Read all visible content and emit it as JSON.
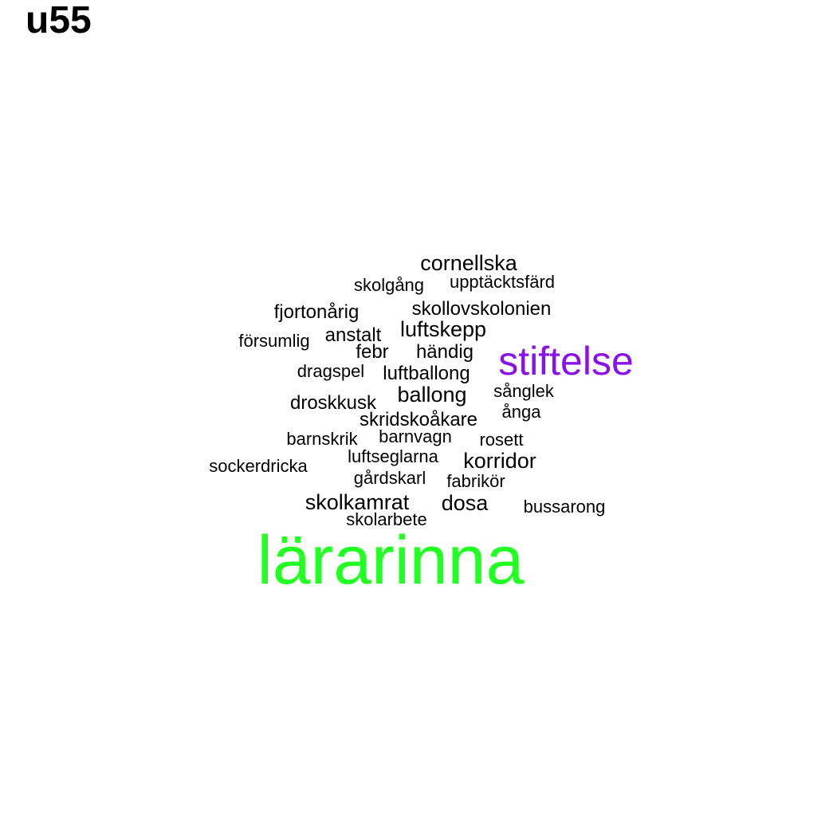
{
  "title": "u55",
  "colors": {
    "highlight_primary": "#22ff22",
    "highlight_secondary": "#8a11e8",
    "default_word": "#000000",
    "background": "#ffffff"
  },
  "words": {
    "cornellska": "cornellska",
    "skolgang": "skolgång",
    "upptacktsfard": "upptäcktsfärd",
    "fjortonarig": "fjortonårig",
    "skollovskolonien": "skollovskolonien",
    "forsumlig": "försumlig",
    "anstalt": "anstalt",
    "luftskepp": "luftskepp",
    "febr": "febr",
    "handig": "händig",
    "stiftelse": "stiftelse",
    "dragspel": "dragspel",
    "luftballong": "luftballong",
    "ballong": "ballong",
    "sanglek": "sånglek",
    "droskkusk": "droskkusk",
    "skridskoakare": "skridskoåkare",
    "anga": "ånga",
    "barnskrik": "barnskrik",
    "barnvagn": "barnvagn",
    "rosett": "rosett",
    "luftseglarna": "luftseglarna",
    "korridor": "korridor",
    "sockerdricka": "sockerdricka",
    "gardskarl": "gårdskarl",
    "fabrikor": "fabrikör",
    "skolkamrat": "skolkamrat",
    "dosa": "dosa",
    "bussarong": "bussarong",
    "skolarbete": "skolarbete",
    "lararinna": "lärarinna"
  }
}
